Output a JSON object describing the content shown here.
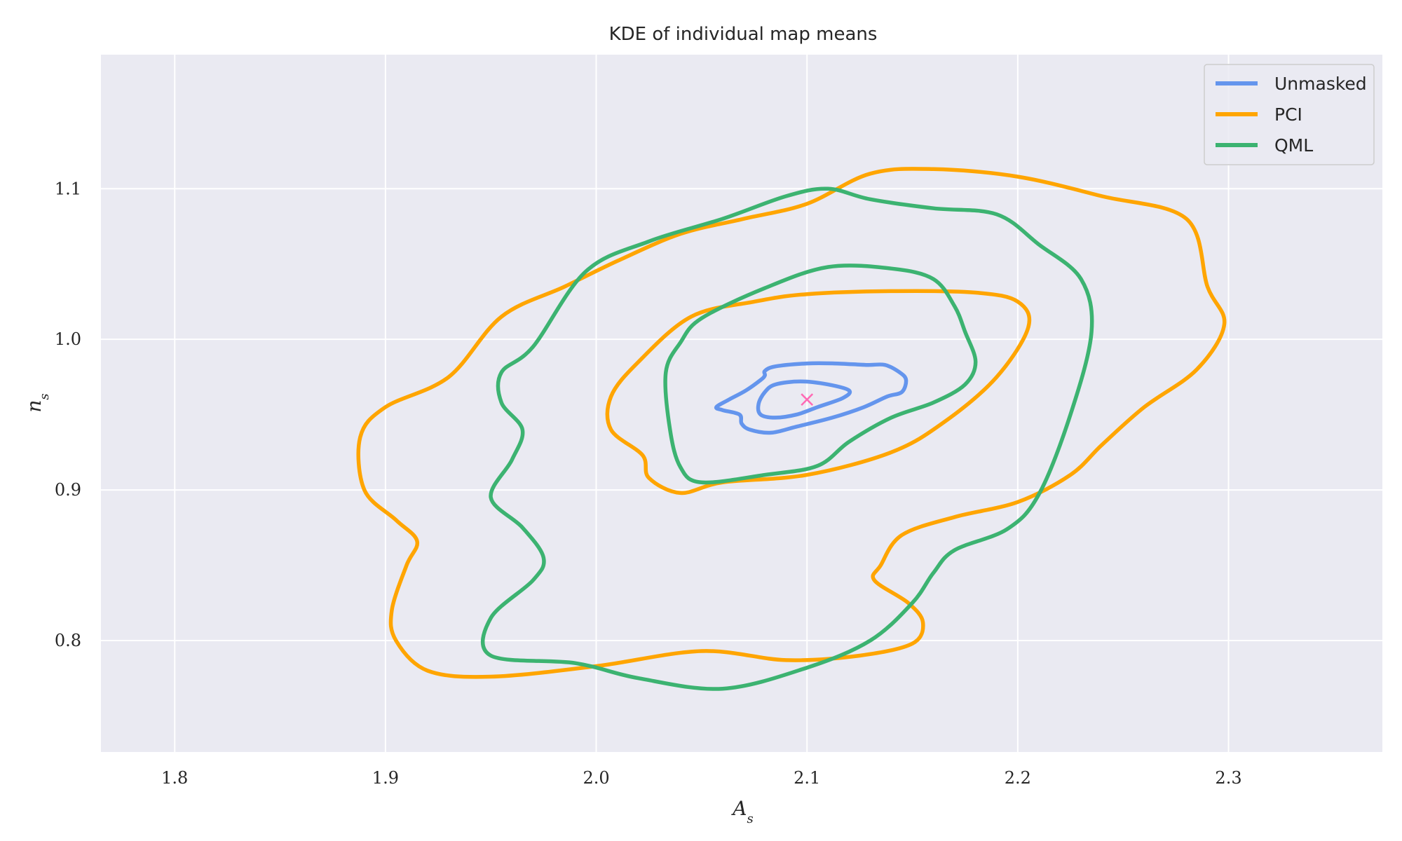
{
  "chart_data": {
    "type": "contour",
    "title": "KDE of individual map means",
    "xlabel_main": "A",
    "xlabel_sub": "s",
    "ylabel_main": "n",
    "ylabel_sub": "s",
    "xlim": [
      1.765,
      2.373
    ],
    "ylim": [
      0.726,
      1.189
    ],
    "x_ticks": [
      1.8,
      1.9,
      2.0,
      2.1,
      2.2,
      2.3
    ],
    "x_tick_labels": [
      "1.8",
      "1.9",
      "2.0",
      "2.1",
      "2.2",
      "2.3"
    ],
    "y_ticks": [
      0.8,
      0.9,
      1.0,
      1.1
    ],
    "y_tick_labels": [
      "0.8",
      "0.9",
      "1.0",
      "1.1"
    ],
    "grid": true,
    "legend_position": "top-right",
    "colors": {
      "background": "#eaeaf2",
      "grid": "#ffffff",
      "marker": "#ff69b4"
    },
    "true_value": {
      "x": 2.1,
      "y": 0.96,
      "marker": "x"
    },
    "series": [
      {
        "name": "Unmasked",
        "color": "#6495ed",
        "contours": [
          [
            [
              2.085,
              0.97
            ],
            [
              2.097,
              0.972
            ],
            [
              2.11,
              0.97
            ],
            [
              2.12,
              0.966
            ],
            [
              2.117,
              0.961
            ],
            [
              2.105,
              0.955
            ],
            [
              2.095,
              0.95
            ],
            [
              2.085,
              0.948
            ],
            [
              2.078,
              0.95
            ],
            [
              2.077,
              0.957
            ],
            [
              2.08,
              0.965
            ],
            [
              2.085,
              0.97
            ]
          ],
          [
            [
              2.085,
              0.982
            ],
            [
              2.1,
              0.984
            ],
            [
              2.113,
              0.984
            ],
            [
              2.128,
              0.983
            ],
            [
              2.137,
              0.983
            ],
            [
              2.144,
              0.978
            ],
            [
              2.147,
              0.973
            ],
            [
              2.145,
              0.965
            ],
            [
              2.138,
              0.962
            ],
            [
              2.127,
              0.955
            ],
            [
              2.112,
              0.948
            ],
            [
              2.095,
              0.942
            ],
            [
              2.083,
              0.938
            ],
            [
              2.073,
              0.94
            ],
            [
              2.069,
              0.944
            ],
            [
              2.068,
              0.95
            ],
            [
              2.06,
              0.953
            ],
            [
              2.057,
              0.955
            ],
            [
              2.063,
              0.96
            ],
            [
              2.071,
              0.966
            ],
            [
              2.078,
              0.973
            ],
            [
              2.08,
              0.976
            ],
            [
              2.08,
              0.979
            ],
            [
              2.085,
              0.982
            ]
          ]
        ]
      },
      {
        "name": "PCI",
        "color": "#ffa500",
        "contours": [
          [
            [
              2.045,
              1.015
            ],
            [
              2.075,
              1.025
            ],
            [
              2.1,
              1.03
            ],
            [
              2.14,
              1.032
            ],
            [
              2.18,
              1.031
            ],
            [
              2.2,
              1.025
            ],
            [
              2.205,
              1.008
            ],
            [
              2.19,
              0.975
            ],
            [
              2.165,
              0.945
            ],
            [
              2.14,
              0.925
            ],
            [
              2.1,
              0.91
            ],
            [
              2.06,
              0.905
            ],
            [
              2.04,
              0.898
            ],
            [
              2.025,
              0.908
            ],
            [
              2.022,
              0.923
            ],
            [
              2.007,
              0.94
            ],
            [
              2.007,
              0.962
            ],
            [
              2.02,
              0.985
            ],
            [
              2.045,
              1.015
            ]
          ],
          [
            [
              1.955,
              1.015
            ],
            [
              1.985,
              1.035
            ],
            [
              2.01,
              1.052
            ],
            [
              2.04,
              1.07
            ],
            [
              2.07,
              1.08
            ],
            [
              2.1,
              1.09
            ],
            [
              2.13,
              1.11
            ],
            [
              2.16,
              1.113
            ],
            [
              2.2,
              1.108
            ],
            [
              2.24,
              1.095
            ],
            [
              2.28,
              1.08
            ],
            [
              2.29,
              1.035
            ],
            [
              2.298,
              1.01
            ],
            [
              2.285,
              0.98
            ],
            [
              2.26,
              0.955
            ],
            [
              2.24,
              0.93
            ],
            [
              2.225,
              0.91
            ],
            [
              2.2,
              0.892
            ],
            [
              2.17,
              0.882
            ],
            [
              2.145,
              0.87
            ],
            [
              2.135,
              0.85
            ],
            [
              2.132,
              0.84
            ],
            [
              2.148,
              0.825
            ],
            [
              2.155,
              0.812
            ],
            [
              2.15,
              0.798
            ],
            [
              2.125,
              0.79
            ],
            [
              2.09,
              0.787
            ],
            [
              2.05,
              0.793
            ],
            [
              2.0,
              0.783
            ],
            [
              1.95,
              0.776
            ],
            [
              1.92,
              0.78
            ],
            [
              1.905,
              0.8
            ],
            [
              1.903,
              0.82
            ],
            [
              1.91,
              0.85
            ],
            [
              1.915,
              0.866
            ],
            [
              1.905,
              0.88
            ],
            [
              1.89,
              0.9
            ],
            [
              1.888,
              0.935
            ],
            [
              1.9,
              0.955
            ],
            [
              1.93,
              0.975
            ],
            [
              1.955,
              1.015
            ]
          ]
        ]
      },
      {
        "name": "QML",
        "color": "#3cb371",
        "contours": [
          [
            [
              2.05,
              1.014
            ],
            [
              2.08,
              1.034
            ],
            [
              2.11,
              1.048
            ],
            [
              2.14,
              1.047
            ],
            [
              2.16,
              1.04
            ],
            [
              2.17,
              1.022
            ],
            [
              2.175,
              1.005
            ],
            [
              2.18,
              0.985
            ],
            [
              2.175,
              0.97
            ],
            [
              2.16,
              0.958
            ],
            [
              2.14,
              0.948
            ],
            [
              2.12,
              0.932
            ],
            [
              2.105,
              0.916
            ],
            [
              2.08,
              0.91
            ],
            [
              2.05,
              0.905
            ],
            [
              2.04,
              0.915
            ],
            [
              2.035,
              0.94
            ],
            [
              2.033,
              0.978
            ],
            [
              2.04,
              0.998
            ],
            [
              2.05,
              1.014
            ]
          ],
          [
            [
              1.995,
              1.045
            ],
            [
              2.025,
              1.065
            ],
            [
              2.06,
              1.08
            ],
            [
              2.09,
              1.095
            ],
            [
              2.11,
              1.1
            ],
            [
              2.13,
              1.093
            ],
            [
              2.16,
              1.087
            ],
            [
              2.19,
              1.083
            ],
            [
              2.21,
              1.063
            ],
            [
              2.23,
              1.04
            ],
            [
              2.235,
              1.005
            ],
            [
              2.225,
              0.95
            ],
            [
              2.21,
              0.897
            ],
            [
              2.195,
              0.874
            ],
            [
              2.17,
              0.86
            ],
            [
              2.16,
              0.845
            ],
            [
              2.15,
              0.825
            ],
            [
              2.13,
              0.8
            ],
            [
              2.1,
              0.782
            ],
            [
              2.06,
              0.768
            ],
            [
              2.02,
              0.775
            ],
            [
              1.99,
              0.785
            ],
            [
              1.95,
              0.79
            ],
            [
              1.95,
              0.815
            ],
            [
              1.97,
              0.84
            ],
            [
              1.975,
              0.855
            ],
            [
              1.965,
              0.875
            ],
            [
              1.95,
              0.895
            ],
            [
              1.96,
              0.92
            ],
            [
              1.965,
              0.94
            ],
            [
              1.955,
              0.958
            ],
            [
              1.955,
              0.978
            ],
            [
              1.97,
              0.995
            ],
            [
              1.995,
              1.045
            ]
          ]
        ]
      }
    ]
  }
}
